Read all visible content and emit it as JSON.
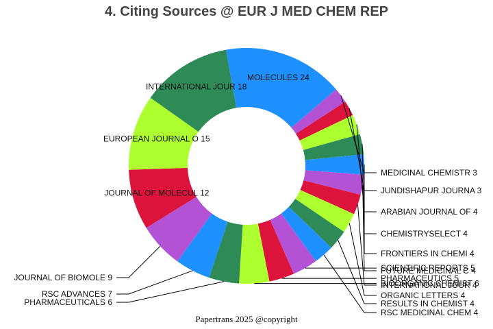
{
  "chart_data": {
    "type": "pie",
    "title": "4. Citing Sources @ EUR J MED CHEM REP",
    "footer": "Papertrans 2025 @copyright",
    "slices": [
      {
        "label": "MOLECULES",
        "value": 24,
        "color": "#1E90FF"
      },
      {
        "label": "MEDICINAL CHEMISTR",
        "value": 3,
        "color": "#B452D6"
      },
      {
        "label": "JUNDISHAPUR JOURNA",
        "value": 3,
        "color": "#DC143C"
      },
      {
        "label": "ARABIAN JOURNAL OF",
        "value": 4,
        "color": "#ADFF2F"
      },
      {
        "label": "CHEMISTRYSELECT",
        "value": 4,
        "color": "#2E8B57"
      },
      {
        "label": "FRONTIERS IN CHEMI",
        "value": 4,
        "color": "#1E90FF"
      },
      {
        "label": "FUTURE MEDICINAL C",
        "value": 4,
        "color": "#B452D6"
      },
      {
        "label": "INTERNATIONAL JOUR",
        "value": 4,
        "color": "#DC143C"
      },
      {
        "label": "ORGANIC LETTERS",
        "value": 4,
        "color": "#ADFF2F"
      },
      {
        "label": "RESULTS IN CHEMIST",
        "value": 4,
        "color": "#2E8B57"
      },
      {
        "label": "RSC MEDICINAL CHEM",
        "value": 4,
        "color": "#1E90FF"
      },
      {
        "label": "SCIENTIFIC REPORTS",
        "value": 5,
        "color": "#B452D6"
      },
      {
        "label": "PHARMACEUTICS",
        "value": 5,
        "color": "#DC143C"
      },
      {
        "label": "BIOORGANIC CHEMIST",
        "value": 6,
        "color": "#ADFF2F"
      },
      {
        "label": "PHARMACEUTICALS",
        "value": 6,
        "color": "#2E8B57"
      },
      {
        "label": "RSC ADVANCES",
        "value": 7,
        "color": "#1E90FF"
      },
      {
        "label": "JOURNAL OF BIOMOLE",
        "value": 9,
        "color": "#B452D6"
      },
      {
        "label": "JOURNAL OF MOLECUL",
        "value": 12,
        "color": "#DC143C"
      },
      {
        "label": "EUROPEAN JOURNAL O",
        "value": 15,
        "color": "#ADFF2F"
      },
      {
        "label": "INTERNATIONAL JOUR",
        "value": 18,
        "color": "#2E8B57"
      }
    ]
  }
}
